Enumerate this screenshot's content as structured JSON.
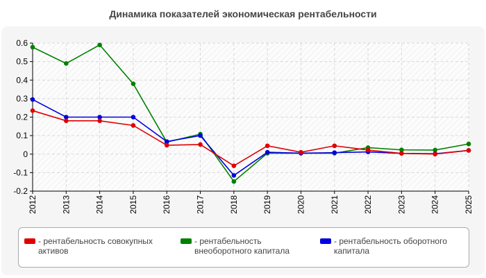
{
  "chart_data": {
    "type": "line",
    "title": "Динамика показателей экономическая рентабельности",
    "x": [
      "2012",
      "2013",
      "2014",
      "2015",
      "2016",
      "2017",
      "2018",
      "2019",
      "2020",
      "2021",
      "2022",
      "2023",
      "2024",
      "2025"
    ],
    "ylim": [
      -0.2,
      0.6
    ],
    "yticks": [
      "0.6",
      "0.5",
      "0.4",
      "0.3",
      "0.2",
      "0.1",
      "0",
      "-0.1",
      "-0.2"
    ],
    "grid": true,
    "legend_position": "bottom",
    "series": [
      {
        "name": "- рентабельность совокупных активов",
        "color": "#e00000",
        "values": [
          0.235,
          0.18,
          0.18,
          0.155,
          0.048,
          0.052,
          -0.063,
          0.045,
          0.01,
          0.045,
          0.022,
          0.004,
          0.0,
          0.02
        ]
      },
      {
        "name": "- рентабельность внеоборотного капитала",
        "color": "#008000",
        "values": [
          0.578,
          0.49,
          0.59,
          0.38,
          0.065,
          0.108,
          -0.148,
          0.005,
          0.005,
          0.005,
          0.035,
          0.023,
          0.022,
          0.055
        ]
      },
      {
        "name": "- рентабельность оборотного капитала",
        "color": "#0000e0",
        "values": [
          0.295,
          0.2,
          0.2,
          0.2,
          0.068,
          0.1,
          -0.115,
          0.01,
          0.005,
          0.008,
          0.012,
          0.004,
          0.002,
          0.02
        ]
      }
    ]
  }
}
